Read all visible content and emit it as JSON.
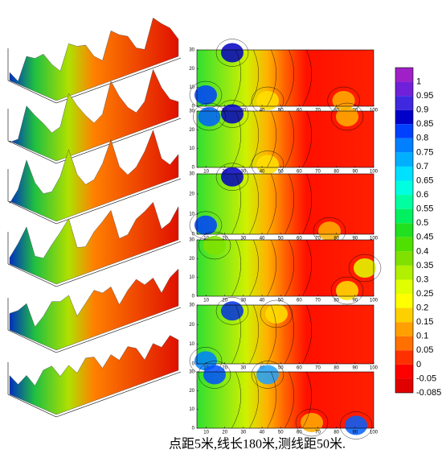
{
  "chart_data": {
    "type": "contour",
    "caption": "点距5米,线长180米,测线距50米.",
    "xlim": [
      5,
      100
    ],
    "ylim": [
      0,
      30
    ],
    "xticks": [
      10,
      20,
      30,
      40,
      50,
      60,
      70,
      80,
      90,
      100
    ],
    "yticks": [
      0,
      10,
      20,
      30
    ],
    "colorbar": {
      "levels": [
        1,
        0.95,
        0.9,
        0.85,
        0.8,
        0.75,
        0.7,
        0.65,
        0.6,
        0.55,
        0.5,
        0.45,
        0.4,
        0.35,
        0.3,
        0.25,
        0.2,
        0.15,
        0.1,
        0.05,
        0,
        -0.05,
        -0.085
      ],
      "colors": [
        "#a020c8",
        "#7020d8",
        "#4028e0",
        "#0000c8",
        "#0040ff",
        "#0080ff",
        "#00b0ff",
        "#00e0ff",
        "#00ffe0",
        "#00ffa0",
        "#00f060",
        "#20e020",
        "#50e000",
        "#80e000",
        "#b0f000",
        "#e0ff00",
        "#ffff00",
        "#ffd000",
        "#ffa000",
        "#ff7000",
        "#ff3000",
        "#ff0000",
        "#e00000"
      ]
    }
  }
}
